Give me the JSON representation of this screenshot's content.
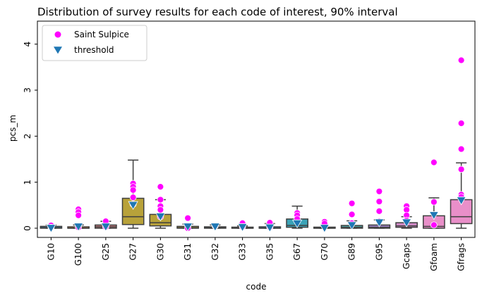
{
  "chart_data": {
    "type": "box",
    "title": "Distribution of survey results for each code of interest, 90% interval",
    "xlabel": "code",
    "ylabel": "pcs_m",
    "ylim": [
      -0.2,
      4.5
    ],
    "yticks": [
      0,
      1,
      2,
      3,
      4
    ],
    "legend": {
      "placement": "top-left",
      "entries": [
        {
          "label": "Saint Sulpice",
          "marker": "circle",
          "color": "#ff00ff"
        },
        {
          "label": "threshold",
          "marker": "triangle-down",
          "color": "#1f77b4"
        }
      ]
    },
    "categories": [
      "G10",
      "G100",
      "G25",
      "G27",
      "G30",
      "G31",
      "G32",
      "G33",
      "G35",
      "G67",
      "G70",
      "G89",
      "G95",
      "Gcaps",
      "Gfoam",
      "Gfrags"
    ],
    "boxes": [
      {
        "category": "G10",
        "color": "#3274a1",
        "whislo": 0.0,
        "q1": 0.0,
        "med": 0.01,
        "q3": 0.04,
        "whishi": 0.07
      },
      {
        "category": "G100",
        "color": "#e1812c",
        "whislo": 0.0,
        "q1": 0.0,
        "med": 0.0,
        "q3": 0.03,
        "whishi": 0.07
      },
      {
        "category": "G25",
        "color": "#c97a7d",
        "whislo": 0.0,
        "q1": 0.0,
        "med": 0.03,
        "q3": 0.07,
        "whishi": 0.15
      },
      {
        "category": "G27",
        "color": "#b8a23a",
        "whislo": 0.0,
        "q1": 0.08,
        "med": 0.25,
        "q3": 0.65,
        "whishi": 1.48
      },
      {
        "category": "G30",
        "color": "#b8a23a",
        "whislo": 0.0,
        "q1": 0.05,
        "med": 0.12,
        "q3": 0.3,
        "whishi": 0.62
      },
      {
        "category": "G31",
        "color": "#b8a23a",
        "whislo": 0.0,
        "q1": 0.0,
        "med": 0.01,
        "q3": 0.04,
        "whishi": 0.09
      },
      {
        "category": "G32",
        "color": "#4daaa7",
        "whislo": 0.0,
        "q1": 0.0,
        "med": 0.01,
        "q3": 0.03,
        "whishi": 0.07
      },
      {
        "category": "G33",
        "color": "#3274a1",
        "whislo": 0.0,
        "q1": 0.0,
        "med": 0.0,
        "q3": 0.02,
        "whishi": 0.05
      },
      {
        "category": "G35",
        "color": "#3274a1",
        "whislo": 0.0,
        "q1": 0.0,
        "med": 0.0,
        "q3": 0.03,
        "whishi": 0.1
      },
      {
        "category": "G67",
        "color": "#3ba3b7",
        "whislo": 0.0,
        "q1": 0.02,
        "med": 0.06,
        "q3": 0.2,
        "whishi": 0.48
      },
      {
        "category": "G70",
        "color": "#4daaa7",
        "whislo": 0.0,
        "q1": 0.0,
        "med": 0.0,
        "q3": 0.0,
        "whishi": 0.01
      },
      {
        "category": "G89",
        "color": "#4daaa7",
        "whislo": 0.0,
        "q1": 0.0,
        "med": 0.02,
        "q3": 0.06,
        "whishi": 0.16
      },
      {
        "category": "G95",
        "color": "#9b7ec0",
        "whislo": 0.0,
        "q1": 0.0,
        "med": 0.02,
        "q3": 0.07,
        "whishi": 0.18
      },
      {
        "category": "Gcaps",
        "color": "#d38bc8",
        "whislo": 0.0,
        "q1": 0.02,
        "med": 0.05,
        "q3": 0.12,
        "whishi": 0.25
      },
      {
        "category": "Gfoam",
        "color": "#e98fc9",
        "whislo": 0.0,
        "q1": 0.0,
        "med": 0.04,
        "q3": 0.27,
        "whishi": 0.66
      },
      {
        "category": "Gfrags",
        "color": "#e98fc9",
        "whislo": 0.0,
        "q1": 0.1,
        "med": 0.25,
        "q3": 0.62,
        "whishi": 1.42
      }
    ],
    "series": [
      {
        "name": "Saint Sulpice",
        "marker": "circle",
        "color": "#ff00ff",
        "points": [
          [
            "G10",
            0.06
          ],
          [
            "G10",
            0.02
          ],
          [
            "G100",
            0.41
          ],
          [
            "G100",
            0.35
          ],
          [
            "G100",
            0.28
          ],
          [
            "G100",
            0.02
          ],
          [
            "G25",
            0.15
          ],
          [
            "G25",
            0.03
          ],
          [
            "G27",
            0.97
          ],
          [
            "G27",
            0.9
          ],
          [
            "G27",
            0.83
          ],
          [
            "G27",
            0.67
          ],
          [
            "G27",
            0.52
          ],
          [
            "G30",
            0.9
          ],
          [
            "G30",
            0.62
          ],
          [
            "G30",
            0.48
          ],
          [
            "G30",
            0.4
          ],
          [
            "G30",
            0.25
          ],
          [
            "G31",
            0.22
          ],
          [
            "G31",
            0.05
          ],
          [
            "G31",
            0.0
          ],
          [
            "G32",
            0.05
          ],
          [
            "G33",
            0.11
          ],
          [
            "G33",
            0.03
          ],
          [
            "G35",
            0.12
          ],
          [
            "G35",
            0.02
          ],
          [
            "G67",
            0.33
          ],
          [
            "G67",
            0.28
          ],
          [
            "G67",
            0.2
          ],
          [
            "G70",
            0.14
          ],
          [
            "G70",
            0.1
          ],
          [
            "G89",
            0.54
          ],
          [
            "G89",
            0.3
          ],
          [
            "G89",
            0.11
          ],
          [
            "G95",
            0.8
          ],
          [
            "G95",
            0.58
          ],
          [
            "G95",
            0.37
          ],
          [
            "G95",
            0.15
          ],
          [
            "Gcaps",
            0.48
          ],
          [
            "Gcaps",
            0.4
          ],
          [
            "Gcaps",
            0.28
          ],
          [
            "Gcaps",
            0.17
          ],
          [
            "Gfoam",
            1.43
          ],
          [
            "Gfoam",
            0.57
          ],
          [
            "Gfoam",
            0.07
          ],
          [
            "Gfrags",
            3.65
          ],
          [
            "Gfrags",
            2.28
          ],
          [
            "Gfrags",
            1.72
          ],
          [
            "Gfrags",
            1.28
          ],
          [
            "Gfrags",
            0.73
          ],
          [
            "Gfrags",
            0.68
          ]
        ]
      },
      {
        "name": "threshold",
        "marker": "triangle-down",
        "color": "#1f77b4",
        "points": [
          [
            "G10",
            0.0
          ],
          [
            "G100",
            0.03
          ],
          [
            "G25",
            0.03
          ],
          [
            "G27",
            0.5
          ],
          [
            "G30",
            0.25
          ],
          [
            "G31",
            0.03
          ],
          [
            "G32",
            0.03
          ],
          [
            "G33",
            0.02
          ],
          [
            "G35",
            0.01
          ],
          [
            "G67",
            0.1
          ],
          [
            "G70",
            0.0
          ],
          [
            "G89",
            0.06
          ],
          [
            "G95",
            0.12
          ],
          [
            "Gcaps",
            0.12
          ],
          [
            "Gfoam",
            0.28
          ],
          [
            "Gfrags",
            0.6
          ]
        ]
      }
    ]
  }
}
